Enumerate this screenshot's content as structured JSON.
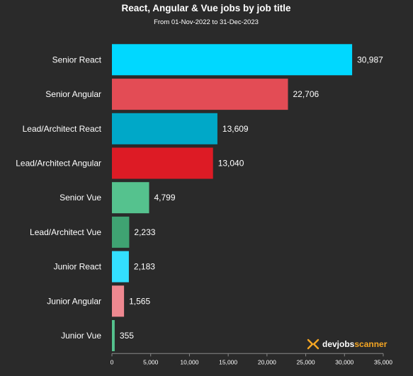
{
  "chart_data": {
    "type": "bar",
    "orientation": "horizontal",
    "title": "React, Angular & Vue jobs by job title",
    "subtitle": "From 01-Nov-2022 to 31-Dec-2023",
    "categories": [
      "Senior React",
      "Senior Angular",
      "Lead/Architect React",
      "Lead/Architect Angular",
      "Senior Vue",
      "Lead/Architect Vue",
      "Junior React",
      "Junior Angular",
      "Junior Vue"
    ],
    "values": [
      30987,
      22706,
      13609,
      13040,
      4799,
      2233,
      2183,
      1565,
      355
    ],
    "value_labels": [
      "30,987",
      "22,706",
      "13,609",
      "13,040",
      "4,799",
      "2,233",
      "2,183",
      "1,565",
      "355"
    ],
    "colors": [
      "#00d8ff",
      "#e34c55",
      "#00a8c8",
      "#dd1b25",
      "#55c28e",
      "#3fa372",
      "#33dfff",
      "#ee8890",
      "#55c28e"
    ],
    "xlim": [
      0,
      35000
    ],
    "xticks": [
      0,
      5000,
      10000,
      15000,
      20000,
      25000,
      30000,
      35000
    ],
    "xtick_labels": [
      "0",
      "5,000",
      "10,000",
      "15,000",
      "20,000",
      "25,000",
      "30,000",
      "35,000"
    ],
    "xlabel": "",
    "ylabel": "",
    "grid": false,
    "legend": "none"
  },
  "branding": {
    "logo_word1": "devjobs",
    "logo_word2": "scanner",
    "logo_word1_color": "#ffffff",
    "logo_word2_color": "#f5a623"
  }
}
